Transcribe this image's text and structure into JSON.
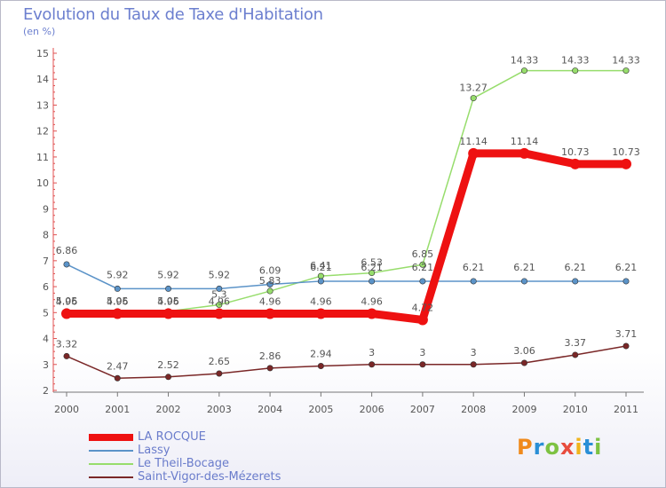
{
  "header": {
    "title": "Evolution du Taux de Taxe d'Habitation",
    "subtitle": "(en %)"
  },
  "logo": {
    "text": "Proxiti",
    "letter_colors": [
      "#f08a1c",
      "#2a8fd6",
      "#7dc242",
      "#e84c3d",
      "#f0b41c",
      "#2a8fd6",
      "#7dc242"
    ]
  },
  "chart_data": {
    "type": "line",
    "title": "Evolution du Taux de Taxe d'Habitation",
    "ylabel": "(en %)",
    "xlabel": "",
    "x": [
      "2000",
      "2001",
      "2002",
      "2003",
      "2004",
      "2005",
      "2006",
      "2007",
      "2008",
      "2009",
      "2010",
      "2011"
    ],
    "ylim": [
      2,
      15
    ],
    "yticks": [
      2,
      3,
      4,
      5,
      6,
      7,
      8,
      9,
      10,
      11,
      12,
      13,
      14,
      15
    ],
    "grid": false,
    "legend": "bottom-left",
    "series": [
      {
        "name": "LA ROCQUE",
        "color": "#ee1111",
        "values": [
          4.96,
          4.96,
          4.96,
          4.96,
          4.96,
          4.96,
          4.96,
          4.72,
          11.14,
          11.14,
          10.73,
          10.73
        ],
        "labels": [
          "4.96",
          "4.96",
          "4.96",
          "4.96",
          "4.96",
          "4.96",
          "4.96",
          "4.72",
          "11.14",
          "11.14",
          "10.73",
          "10.73"
        ]
      },
      {
        "name": "Lassy",
        "color": "#5b93c8",
        "values": [
          6.86,
          5.92,
          5.92,
          5.92,
          6.09,
          6.21,
          6.21,
          6.21,
          6.21,
          6.21,
          6.21,
          6.21
        ],
        "labels": [
          "6.86",
          "5.92",
          "5.92",
          "5.92",
          "6.09",
          "6.21",
          "6.21",
          "6.21",
          "6.21",
          "6.21",
          "6.21",
          "6.21"
        ]
      },
      {
        "name": "Le Theil-Bocage",
        "color": "#97dd6c",
        "values": [
          5.05,
          5.05,
          5.05,
          5.3,
          5.83,
          6.41,
          6.53,
          6.85,
          13.27,
          14.33,
          14.33,
          14.33
        ],
        "labels": [
          "5.05",
          "5.05",
          "5.05",
          "5.3",
          "5.83",
          "6.41",
          "6.53",
          "6.85",
          "13.27",
          "14.33",
          "14.33",
          "14.33"
        ]
      },
      {
        "name": "Saint-Vigor-des-Mézerets",
        "color": "#7a2727",
        "values": [
          3.32,
          2.47,
          2.52,
          2.65,
          2.86,
          2.94,
          3,
          3,
          3,
          3.06,
          3.37,
          3.71
        ],
        "labels": [
          "3.32",
          "2.47",
          "2.52",
          "2.65",
          "2.86",
          "2.94",
          "3",
          "3",
          "3",
          "3.06",
          "3.37",
          "3.71"
        ]
      }
    ]
  }
}
